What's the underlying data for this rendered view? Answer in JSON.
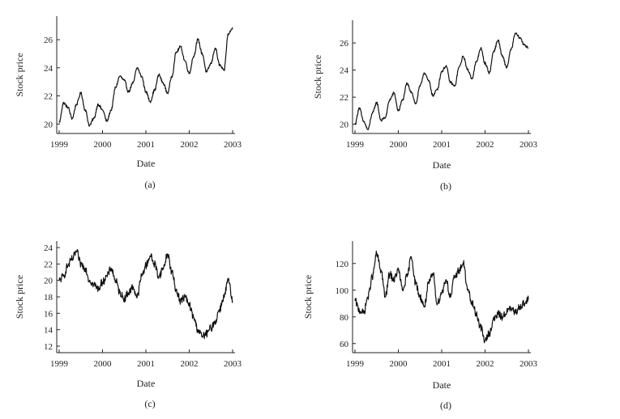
{
  "chart_data": [
    {
      "type": "line",
      "caption": "(a)",
      "xlabel": "Date",
      "ylabel": "Stock price",
      "xlim": [
        1999,
        2003
      ],
      "ylim": [
        19.5,
        27.5
      ],
      "x_ticks": [
        "1999",
        "2000",
        "2001",
        "2002",
        "2003"
      ],
      "y_ticks": [
        "20",
        "22",
        "24",
        "26"
      ],
      "series": [
        {
          "x": [
            1999.0,
            1999.1,
            1999.2,
            1999.3,
            1999.4,
            1999.5,
            1999.6,
            1999.7,
            1999.8,
            1999.9,
            2000.0,
            2000.1,
            2000.2,
            2000.3,
            2000.4,
            2000.5,
            2000.6,
            2000.7,
            2000.8,
            2000.9,
            2001.0,
            2001.1,
            2001.2,
            2001.3,
            2001.4,
            2001.5,
            2001.6,
            2001.7,
            2001.8,
            2001.9,
            2002.0,
            2002.1,
            2002.2,
            2002.3,
            2002.4,
            2002.5,
            2002.6,
            2002.7,
            2002.8,
            2002.9,
            2003.0
          ],
          "y": [
            20.1,
            21.5,
            21.2,
            20.4,
            21.4,
            22.2,
            21.0,
            19.9,
            20.4,
            21.4,
            21.0,
            20.2,
            21.0,
            22.6,
            23.4,
            23.1,
            22.3,
            22.9,
            24.0,
            23.4,
            22.3,
            21.6,
            22.4,
            23.5,
            22.9,
            22.2,
            23.4,
            25.1,
            25.5,
            24.5,
            23.6,
            24.8,
            26.0,
            25.0,
            23.7,
            24.3,
            25.4,
            24.2,
            23.8,
            26.4,
            26.8
          ]
        }
      ]
    },
    {
      "type": "line",
      "caption": "(b)",
      "xlabel": "Date",
      "ylabel": "Stock price",
      "xlim": [
        1999,
        2003
      ],
      "ylim": [
        19.5,
        27.5
      ],
      "x_ticks": [
        "1999",
        "2000",
        "2001",
        "2002",
        "2003"
      ],
      "y_ticks": [
        "20",
        "22",
        "24",
        "26"
      ],
      "series": [
        {
          "x": [
            1999.0,
            1999.1,
            1999.2,
            1999.3,
            1999.4,
            1999.5,
            1999.6,
            1999.7,
            1999.8,
            1999.9,
            2000.0,
            2000.1,
            2000.2,
            2000.3,
            2000.4,
            2000.5,
            2000.6,
            2000.7,
            2000.8,
            2000.9,
            2001.0,
            2001.1,
            2001.2,
            2001.3,
            2001.4,
            2001.5,
            2001.6,
            2001.7,
            2001.8,
            2001.9,
            2002.0,
            2002.1,
            2002.2,
            2002.3,
            2002.4,
            2002.5,
            2002.6,
            2002.7,
            2002.8,
            2002.9,
            2003.0
          ],
          "y": [
            20.0,
            21.2,
            20.2,
            19.6,
            20.8,
            21.6,
            20.3,
            20.5,
            21.8,
            22.3,
            21.0,
            21.8,
            23.0,
            22.4,
            21.5,
            22.8,
            23.8,
            23.2,
            22.1,
            22.6,
            23.9,
            24.3,
            23.1,
            22.8,
            24.2,
            25.0,
            24.0,
            23.4,
            24.6,
            25.6,
            24.5,
            23.8,
            25.4,
            26.2,
            25.0,
            24.2,
            25.5,
            26.7,
            26.4,
            25.9,
            25.6
          ]
        }
      ]
    },
    {
      "type": "line",
      "caption": "(c)",
      "xlabel": "Date",
      "ylabel": "Stock price",
      "xlim": [
        1999,
        2003
      ],
      "ylim": [
        11.5,
        24.5
      ],
      "x_ticks": [
        "1999",
        "2000",
        "2001",
        "2002",
        "2003"
      ],
      "y_ticks": [
        "12",
        "14",
        "16",
        "18",
        "20",
        "22",
        "24"
      ],
      "series": [
        {
          "x": [
            1999.0,
            1999.1,
            1999.2,
            1999.3,
            1999.4,
            1999.5,
            1999.6,
            1999.7,
            1999.8,
            1999.9,
            2000.0,
            2000.1,
            2000.2,
            2000.3,
            2000.4,
            2000.5,
            2000.6,
            2000.7,
            2000.8,
            2000.9,
            2001.0,
            2001.1,
            2001.2,
            2001.3,
            2001.4,
            2001.5,
            2001.6,
            2001.7,
            2001.8,
            2001.9,
            2002.0,
            2002.1,
            2002.2,
            2002.3,
            2002.4,
            2002.5,
            2002.6,
            2002.7,
            2002.8,
            2002.9,
            2003.0
          ],
          "y": [
            20.0,
            20.5,
            21.8,
            22.6,
            23.5,
            22.0,
            21.5,
            20.0,
            19.5,
            19.0,
            19.8,
            20.5,
            21.5,
            20.0,
            18.5,
            17.8,
            18.5,
            19.2,
            18.0,
            20.5,
            21.8,
            23.0,
            22.0,
            20.5,
            21.5,
            23.2,
            21.0,
            18.8,
            17.5,
            18.0,
            17.0,
            15.5,
            14.0,
            13.2,
            13.5,
            14.2,
            15.0,
            16.5,
            18.0,
            20.0,
            17.5
          ]
        }
      ]
    },
    {
      "type": "line",
      "caption": "(d)",
      "xlabel": "Date",
      "ylabel": "Stock price",
      "xlim": [
        1999,
        2003
      ],
      "ylim": [
        55,
        135
      ],
      "x_ticks": [
        "1999",
        "2000",
        "2001",
        "2002",
        "2003"
      ],
      "y_ticks": [
        "60",
        "80",
        "100",
        "120"
      ],
      "series": [
        {
          "x": [
            1999.0,
            1999.1,
            1999.2,
            1999.3,
            1999.4,
            1999.5,
            1999.6,
            1999.7,
            1999.8,
            1999.9,
            2000.0,
            2000.1,
            2000.2,
            2000.3,
            2000.4,
            2000.5,
            2000.6,
            2000.7,
            2000.8,
            2000.9,
            2001.0,
            2001.1,
            2001.2,
            2001.3,
            2001.4,
            2001.5,
            2001.6,
            2001.7,
            2001.8,
            2001.9,
            2002.0,
            2002.1,
            2002.2,
            2002.3,
            2002.4,
            2002.5,
            2002.6,
            2002.7,
            2002.8,
            2002.9,
            2003.0
          ],
          "y": [
            92,
            85,
            83,
            95,
            110,
            127,
            115,
            95,
            112,
            108,
            115,
            100,
            110,
            125,
            105,
            95,
            88,
            105,
            112,
            90,
            98,
            108,
            95,
            110,
            115,
            120,
            100,
            90,
            82,
            72,
            62,
            68,
            78,
            82,
            80,
            84,
            86,
            83,
            88,
            90,
            93
          ]
        }
      ]
    }
  ]
}
